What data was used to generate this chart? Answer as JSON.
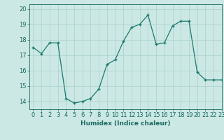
{
  "x": [
    0,
    1,
    2,
    3,
    4,
    5,
    6,
    7,
    8,
    9,
    10,
    11,
    12,
    13,
    14,
    15,
    16,
    17,
    18,
    19,
    20,
    21,
    22,
    23
  ],
  "y": [
    17.5,
    17.1,
    17.8,
    17.8,
    14.2,
    13.9,
    14.0,
    14.2,
    14.8,
    16.4,
    16.7,
    17.9,
    18.8,
    19.0,
    19.6,
    17.7,
    17.8,
    18.9,
    19.2,
    19.2,
    15.9,
    15.4,
    15.4,
    15.4
  ],
  "line_color": "#1a7a6e",
  "marker": "+",
  "bg_color": "#cce8e5",
  "grid_color": "#aed4d0",
  "tick_color": "#1a6a60",
  "xlabel": "Humidex (Indice chaleur)",
  "xlim": [
    -0.5,
    23
  ],
  "ylim": [
    13.5,
    20.3
  ],
  "yticks": [
    14,
    15,
    16,
    17,
    18,
    19,
    20
  ],
  "xticks": [
    0,
    1,
    2,
    3,
    4,
    5,
    6,
    7,
    8,
    9,
    10,
    11,
    12,
    13,
    14,
    15,
    16,
    17,
    18,
    19,
    20,
    21,
    22,
    23
  ],
  "label_fontsize": 6.5,
  "tick_fontsize": 6
}
